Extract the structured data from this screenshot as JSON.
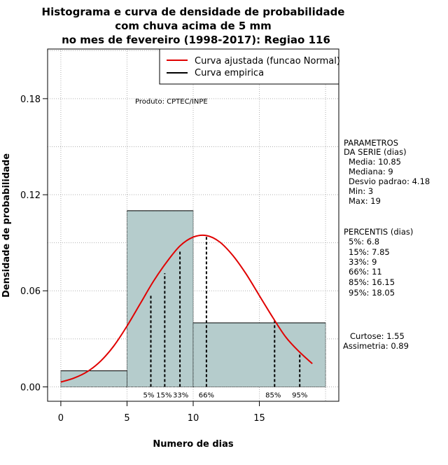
{
  "chart_data": {
    "type": "bar",
    "title_lines": [
      "Histograma e curva de densidade de probabilidade",
      "com chuva acima de 5 mm",
      "no mes de fevereiro (1998-2017): Regiao 116"
    ],
    "xlabel": "Numero de dias",
    "ylabel": "Densidade de probabilidade",
    "xlim": [
      -1,
      21
    ],
    "ylim": [
      -0.009,
      0.211
    ],
    "x_ticks": [
      0,
      5,
      10,
      15
    ],
    "y_ticks": [
      0.0,
      0.06,
      0.12,
      0.18
    ],
    "x_tick_labels": [
      "0",
      "5",
      "10",
      "15"
    ],
    "y_tick_labels": [
      "0.00",
      "0.06",
      "0.12",
      "0.18"
    ],
    "grid": true,
    "histogram": {
      "bins": [
        {
          "x0": 0,
          "x1": 5,
          "density": 0.01
        },
        {
          "x0": 5,
          "x1": 10,
          "density": 0.11
        },
        {
          "x0": 10,
          "x1": 20,
          "density": 0.04
        }
      ],
      "fill": "#b5cccc"
    },
    "fitted_curve": {
      "name": "Curva ajustada (funcao Normal)",
      "color": "#e00000",
      "x": [
        0,
        1,
        2,
        3,
        4,
        5,
        6,
        7,
        8,
        9,
        10,
        11,
        12,
        13,
        14,
        15,
        16,
        17,
        18,
        19
      ],
      "y": [
        0.003,
        0.0055,
        0.0095,
        0.016,
        0.0255,
        0.038,
        0.052,
        0.066,
        0.078,
        0.088,
        0.0935,
        0.0945,
        0.0905,
        0.082,
        0.0705,
        0.057,
        0.0435,
        0.031,
        0.022,
        0.0145
      ]
    },
    "empirical_curve": {
      "name": "Curva empirica",
      "color": "#000000"
    },
    "percentiles": [
      {
        "label": "5%",
        "x": 6.8,
        "y": 0.058
      },
      {
        "label": "15%",
        "x": 7.85,
        "y": 0.071
      },
      {
        "label": "33%",
        "x": 9,
        "y": 0.085
      },
      {
        "label": "66%",
        "x": 11,
        "y": 0.0945
      },
      {
        "label": "85%",
        "x": 16.15,
        "y": 0.0415
      },
      {
        "label": "95%",
        "x": 18.05,
        "y": 0.0215
      }
    ],
    "annotation": "Produto: CPTEC/INPE",
    "legend_position": "top-right"
  },
  "side_panel": {
    "params_title_1": "PARAMETROS",
    "params_title_2": "DA SERIE (dias)",
    "params": [
      "Media: 10.85",
      "Mediana: 9",
      "Desvio padrao: 4.18",
      "Min: 3",
      "Max: 19"
    ],
    "percentis_title": "PERCENTIS (dias)",
    "percentis": [
      "5%: 6.8",
      "15%: 7.85",
      "33%: 9",
      "66%: 11",
      "85%: 16.15",
      "95%: 18.05"
    ],
    "curtose": "Curtose: 1.55",
    "assimetria": "Assimetria: 0.89"
  }
}
